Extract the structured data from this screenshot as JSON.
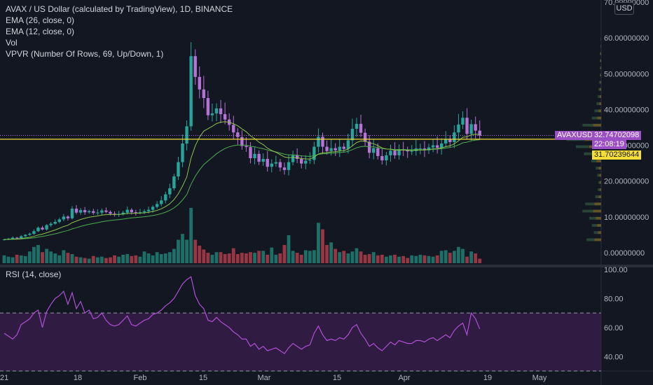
{
  "legend": {
    "title": "AVAX / US Dollar (calculated by TradingView), 1D, BINANCE",
    "ema26": "EMA (26, close, 0)",
    "ema12": "EMA (12, close, 0)",
    "vol": "Vol",
    "vpvr": "VPVR (Number Of Rows, 69, Up/Down, 1)"
  },
  "rsi_title": "RSI (14, close)",
  "unit": "USD",
  "symbol_tag": "AVAXUSD",
  "last_price_tag": "32.74702098",
  "countdown_tag": "22:08:19",
  "hline_tag": "31.70239644",
  "colors": {
    "background": "#131722",
    "up": "#26a69a",
    "down": "#b672d6",
    "vol_up": "#1f7a6f",
    "vol_down": "#a83a47",
    "ema26": "#4caf50",
    "ema12": "#8bc34a",
    "rsi": "#b14ed8",
    "rsi_band": "#3b1f4d",
    "hline": "#f7de36",
    "text": "#b2b5be"
  },
  "chart_data": [
    {
      "type": "candlestick",
      "title": "AVAX / US Dollar (calculated by TradingView), 1D, BINANCE",
      "ylim": [
        0,
        70
      ],
      "y_ticks": [
        "70.00000000",
        "60.00000000",
        "50.00000000",
        "40.00000000",
        "30.00000000",
        "20.00000000",
        "10.00000000",
        "0.00000000"
      ],
      "x_ticks": [
        "21",
        "18",
        "Feb",
        "15",
        "Mar",
        "15",
        "Apr",
        "19",
        "May"
      ],
      "horizontal_line": 31.70239644,
      "last_price": 32.74702098,
      "closes": [
        3.7,
        3.9,
        4.2,
        4.1,
        4.6,
        5.0,
        5.3,
        6.0,
        7.0,
        6.5,
        7.7,
        8.1,
        8.6,
        9.3,
        10.1,
        9.6,
        12.3,
        11.2,
        11.9,
        11.3,
        11.6,
        11.1,
        11.2,
        11.8,
        11.4,
        10.9,
        10.7,
        10.8,
        11.2,
        12.0,
        11.3,
        11.1,
        11.3,
        11.6,
        12.0,
        12.8,
        13.6,
        14.6,
        16.3,
        18.0,
        21.3,
        25.3,
        30.5,
        35.3,
        54.9,
        49.1,
        45.6,
        43.2,
        38.4,
        38.9,
        40.3,
        38.7,
        37.2,
        35.7,
        33.6,
        32.3,
        29.8,
        29.5,
        26.4,
        27.6,
        25.4,
        26.2,
        24.0,
        24.9,
        25.3,
        23.8,
        23.1,
        25.3,
        27.2,
        26.2,
        24.9,
        25.7,
        25.9,
        29.6,
        32.4,
        29.6,
        28.4,
        29.2,
        28.6,
        29.6,
        29.0,
        31.4,
        34.6,
        36.0,
        33.5,
        31.0,
        27.9,
        29.2,
        27.0,
        25.8,
        27.2,
        28.5,
        27.2,
        28.9,
        28.6,
        28.3,
        28.4,
        29.1,
        29.1,
        28.6,
        29.4,
        30.0,
        29.3,
        30.5,
        31.7,
        30.9,
        33.6,
        35.8,
        37.7,
        33.2,
        35.9,
        34.1,
        32.7
      ]
    },
    {
      "type": "bar",
      "title": "Vol",
      "relative_volume": [
        0.12,
        0.1,
        0.09,
        0.13,
        0.12,
        0.11,
        0.18,
        0.25,
        0.28,
        0.17,
        0.22,
        0.18,
        0.15,
        0.12,
        0.2,
        0.16,
        0.14,
        0.1,
        0.09,
        0.08,
        0.07,
        0.11,
        0.09,
        0.1,
        0.08,
        0.09,
        0.12,
        0.1,
        0.13,
        0.14,
        0.11,
        0.12,
        0.1,
        0.18,
        0.15,
        0.12,
        0.17,
        0.14,
        0.15,
        0.17,
        0.22,
        0.36,
        0.45,
        0.36,
        0.85,
        0.36,
        0.27,
        0.21,
        0.16,
        0.13,
        0.17,
        0.17,
        0.14,
        0.15,
        0.23,
        0.14,
        0.16,
        0.15,
        0.17,
        0.16,
        0.19,
        0.19,
        0.13,
        0.24,
        0.13,
        0.15,
        0.28,
        0.43,
        0.19,
        0.16,
        0.13,
        0.2,
        0.19,
        0.2,
        0.62,
        0.52,
        0.28,
        0.32,
        0.22,
        0.17,
        0.19,
        0.15,
        0.18,
        0.23,
        0.18,
        0.13,
        0.14,
        0.17,
        0.12,
        0.13,
        0.1,
        0.12,
        0.13,
        0.1,
        0.11,
        0.08,
        0.12,
        0.11,
        0.13,
        0.12,
        0.11,
        0.1,
        0.12,
        0.19,
        0.2,
        0.16,
        0.19,
        0.25,
        0.22,
        0.1,
        0.18,
        0.15,
        0.07
      ]
    },
    {
      "type": "line",
      "title": "RSI (14, close)",
      "ylim": [
        30,
        100
      ],
      "y_ticks": [
        "100.00",
        "80.00",
        "60.00",
        "40.00"
      ],
      "bands": [
        70,
        30
      ],
      "values": [
        56,
        54,
        52,
        55,
        62,
        64,
        66,
        70,
        72,
        60,
        71,
        76,
        80,
        82,
        85,
        76,
        84,
        73,
        78,
        70,
        72,
        66,
        67,
        70,
        65,
        62,
        61,
        62,
        65,
        68,
        62,
        61,
        63,
        65,
        66,
        69,
        70,
        72,
        75,
        77,
        80,
        85,
        90,
        93,
        95,
        82,
        76,
        73,
        65,
        64,
        67,
        64,
        62,
        60,
        57,
        55,
        52,
        52,
        47,
        49,
        45,
        47,
        44,
        45,
        46,
        44,
        42,
        46,
        49,
        47,
        45,
        47,
        48,
        56,
        61,
        55,
        51,
        52,
        51,
        53,
        52,
        55,
        60,
        62,
        56,
        52,
        47,
        49,
        46,
        44,
        47,
        50,
        48,
        51,
        50,
        49,
        49,
        51,
        51,
        50,
        52,
        53,
        51,
        53,
        55,
        53,
        58,
        61,
        63,
        55,
        70,
        66,
        59
      ]
    },
    {
      "type": "bar",
      "title": "VPVR (Number Of Rows, 69, Up/Down, 1)",
      "orientation": "horizontal",
      "price_levels": [
        3,
        5,
        7,
        9,
        11,
        13,
        15,
        17,
        19,
        21,
        23,
        25,
        27,
        29,
        31,
        33,
        35,
        37,
        39,
        41,
        43,
        45,
        47,
        49,
        51,
        53,
        55,
        57,
        59,
        61
      ],
      "up": [
        12,
        6,
        8,
        10,
        16,
        14,
        5,
        3,
        2,
        3,
        4,
        8,
        14,
        20,
        28,
        30,
        16,
        8,
        6,
        4,
        3,
        2,
        2,
        1,
        1,
        1,
        1,
        1,
        1,
        0
      ],
      "down": [
        10,
        5,
        6,
        8,
        12,
        10,
        4,
        2,
        2,
        3,
        4,
        7,
        12,
        18,
        24,
        26,
        12,
        6,
        4,
        3,
        2,
        2,
        1,
        1,
        1,
        1,
        1,
        0,
        0,
        0
      ]
    }
  ]
}
